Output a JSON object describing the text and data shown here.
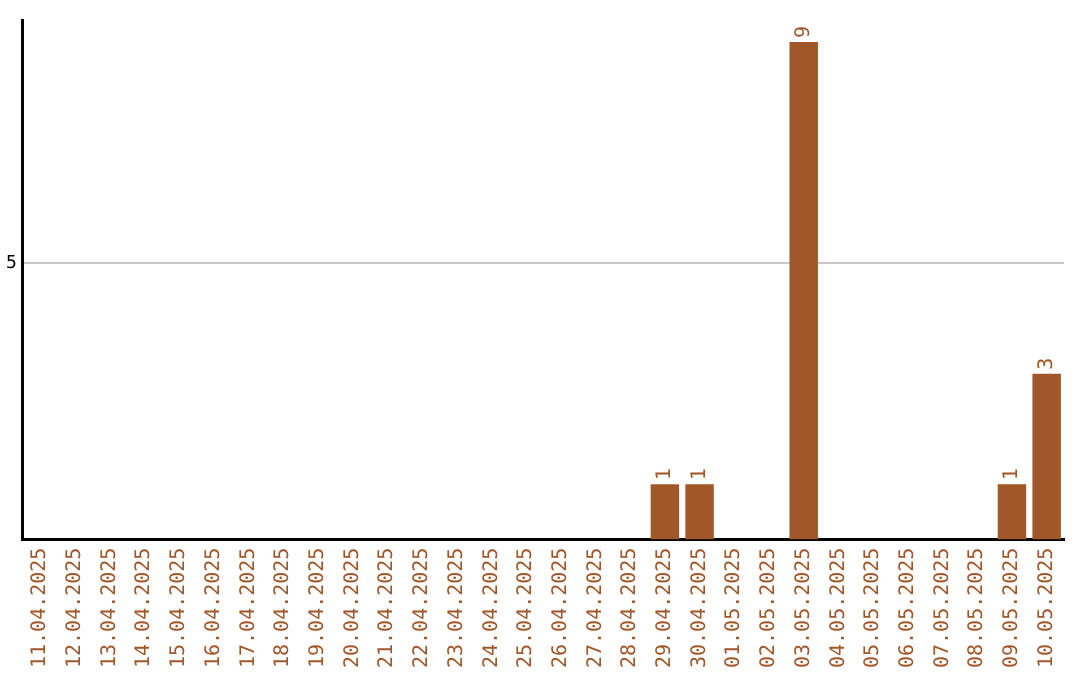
{
  "chart_data": {
    "type": "bar",
    "categories": [
      "11.04.2025",
      "12.04.2025",
      "13.04.2025",
      "14.04.2025",
      "15.04.2025",
      "16.04.2025",
      "17.04.2025",
      "18.04.2025",
      "19.04.2025",
      "20.04.2025",
      "21.04.2025",
      "22.04.2025",
      "23.04.2025",
      "24.04.2025",
      "25.04.2025",
      "26.04.2025",
      "27.04.2025",
      "28.04.2025",
      "29.04.2025",
      "30.04.2025",
      "01.05.2025",
      "02.05.2025",
      "03.05.2025",
      "04.05.2025",
      "05.05.2025",
      "06.05.2025",
      "07.05.2025",
      "08.05.2025",
      "09.05.2025",
      "10.05.2025"
    ],
    "values": [
      null,
      null,
      null,
      null,
      null,
      null,
      null,
      null,
      null,
      null,
      null,
      null,
      null,
      null,
      null,
      null,
      null,
      null,
      1,
      1,
      null,
      null,
      9,
      null,
      null,
      null,
      null,
      null,
      1,
      3
    ],
    "ylim": [
      0,
      9.4
    ],
    "yticks": [
      5
    ],
    "grid": "y",
    "value_labels": [
      null,
      null,
      null,
      null,
      null,
      null,
      null,
      null,
      null,
      null,
      null,
      null,
      null,
      null,
      null,
      null,
      null,
      null,
      "1",
      "1",
      null,
      null,
      "9",
      null,
      null,
      null,
      null,
      null,
      "1",
      "3"
    ],
    "color": "#a0572a",
    "legend": false
  }
}
